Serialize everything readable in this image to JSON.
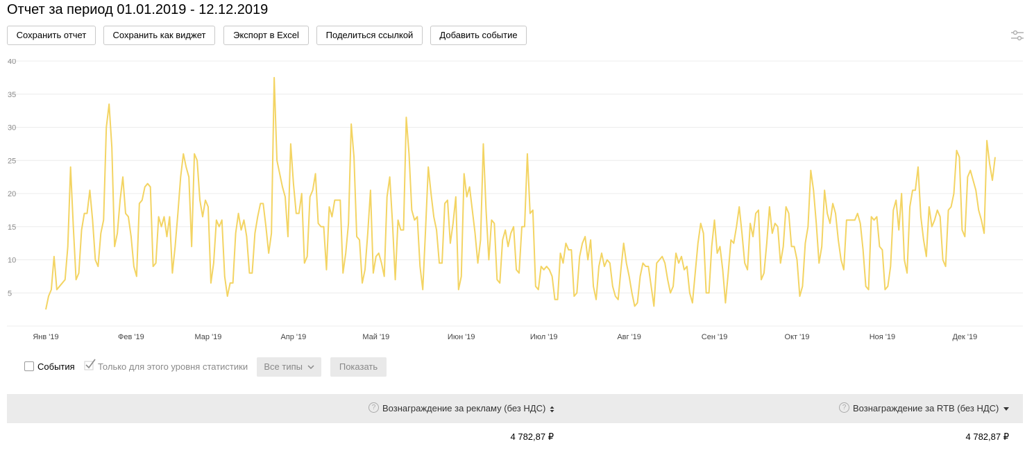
{
  "report": {
    "title": "Отчет за период 01.01.2019 - 12.12.2019"
  },
  "toolbar": {
    "buttons": [
      {
        "label": "Сохранить отчет"
      },
      {
        "label": "Сохранить как виджет"
      },
      {
        "label": "Экспорт в Excel"
      },
      {
        "label": "Поделиться ссылкой"
      },
      {
        "label": "Добавить событие"
      }
    ],
    "settings_icon": "sliders-icon"
  },
  "chart_data": {
    "type": "line",
    "title": "",
    "xlabel": "",
    "ylabel": "",
    "ylim": [
      0,
      40
    ],
    "yticks": [
      5,
      10,
      15,
      20,
      25,
      30,
      35,
      40
    ],
    "grid": true,
    "line_color": "#f3d463",
    "x_range": [
      "2019-01-01",
      "2019-12-12"
    ],
    "x_tick_labels": [
      {
        "label": "Янв '19",
        "date": "2019-01-01"
      },
      {
        "label": "Фев '19",
        "date": "2019-02-01"
      },
      {
        "label": "Мар '19",
        "date": "2019-03-01"
      },
      {
        "label": "Апр '19",
        "date": "2019-04-01"
      },
      {
        "label": "Май '19",
        "date": "2019-05-01"
      },
      {
        "label": "Июн '19",
        "date": "2019-06-01"
      },
      {
        "label": "Июл '19",
        "date": "2019-07-01"
      },
      {
        "label": "Авг '19",
        "date": "2019-08-01"
      },
      {
        "label": "Сен '19",
        "date": "2019-09-01"
      },
      {
        "label": "Окт '19",
        "date": "2019-10-01"
      },
      {
        "label": "Ноя '19",
        "date": "2019-11-01"
      },
      {
        "label": "Дек '19",
        "date": "2019-12-01"
      }
    ],
    "series": [
      {
        "values": [
          2.5,
          4.5,
          5.5,
          10.5,
          5.5,
          6,
          6.5,
          7,
          12,
          24,
          15,
          7,
          8,
          14.5,
          17,
          17,
          20.5,
          16,
          10,
          9,
          14,
          16,
          30,
          33.5,
          27,
          12,
          14,
          19,
          22.5,
          17,
          16.5,
          13.5,
          9,
          7.5,
          18.5,
          19,
          21,
          21.5,
          21,
          9,
          9.5,
          16.5,
          15,
          16.5,
          13.5,
          16.5,
          8,
          12,
          17,
          22.5,
          26,
          24,
          22.5,
          12,
          26,
          25,
          19,
          16.5,
          19,
          18,
          6.5,
          9.5,
          16,
          15,
          16,
          7.5,
          4.5,
          6.5,
          6.5,
          14,
          17,
          14.5,
          16,
          13.5,
          8,
          8,
          14,
          16.5,
          18.5,
          18.5,
          15,
          11,
          14,
          37.5,
          25,
          23,
          21,
          19.5,
          13.5,
          27.5,
          21.5,
          17,
          17,
          20,
          9.5,
          10.5,
          19.5,
          20.5,
          23,
          15.5,
          15,
          15,
          8.5,
          18,
          16.5,
          19,
          19,
          19,
          8,
          11,
          15.5,
          30.5,
          25.5,
          13.5,
          13,
          6.5,
          8.5,
          14,
          20.5,
          8,
          10.5,
          11,
          9.5,
          7.5,
          19.5,
          22.5,
          15.5,
          7,
          16,
          14.5,
          14.5,
          31.5,
          26,
          17.5,
          16,
          16.5,
          9,
          5.5,
          14.5,
          24,
          20,
          16.5,
          14.5,
          9.5,
          9.5,
          18.5,
          19,
          12.5,
          15.5,
          19.5,
          5.5,
          7.5,
          23,
          19.5,
          21,
          17.5,
          14,
          9.5,
          13,
          27.5,
          17.5,
          10,
          16,
          15.5,
          7,
          6.5,
          13,
          14.5,
          12,
          14,
          15,
          8.5,
          8,
          15,
          15,
          26,
          17,
          17.5,
          6,
          5.5,
          9,
          8.5,
          9,
          8.5,
          7.5,
          4,
          4,
          11,
          9.5,
          12.5,
          11.5,
          11.5,
          4.5,
          5,
          10.5,
          12.5,
          13.5,
          10,
          13,
          6,
          4,
          9,
          11,
          9,
          10,
          9.5,
          6,
          4.5,
          4,
          8.5,
          12.5,
          9.5,
          7.5,
          5,
          3,
          3.5,
          7.5,
          9.5,
          9,
          9,
          6,
          3,
          9.5,
          10,
          10.5,
          9.5,
          7,
          5,
          6,
          11,
          9.5,
          10.5,
          8.5,
          9,
          5,
          3.5,
          8,
          12.5,
          15.5,
          14,
          5,
          5,
          12,
          16,
          11,
          12,
          8.5,
          3.5,
          8,
          13,
          12.5,
          15,
          18,
          14,
          9.5,
          8.5,
          15.5,
          13.5,
          17,
          17.5,
          7,
          8,
          12.5,
          18,
          14,
          15.5,
          15,
          9.5,
          12,
          18,
          17,
          12,
          12,
          10,
          4.5,
          6,
          12.5,
          15,
          23.5,
          20.5,
          15.5,
          9.5,
          12,
          20.5,
          17,
          15.5,
          18.5,
          17,
          13,
          10,
          8.5,
          16,
          16,
          16,
          16,
          17,
          15.5,
          11.5,
          6,
          5.5,
          16.5,
          16,
          16.5,
          12,
          11.5,
          5.5,
          6,
          9,
          17.5,
          19,
          14.5,
          20,
          10,
          8,
          18,
          20.5,
          20.5,
          24,
          16.5,
          13,
          10.5,
          18,
          15,
          16,
          17.5,
          16.5,
          10,
          9,
          17.5,
          18,
          20,
          26.5,
          25.5,
          14.5,
          13.5,
          22.5,
          23.5,
          22,
          20.5,
          17.5,
          16,
          14,
          28,
          24.5,
          22,
          25.5
        ]
      }
    ]
  },
  "controls": {
    "events_label": "События",
    "events_checked": false,
    "level_only_label": "Только для этого уровня статистики",
    "level_only_checked": true,
    "types_dropdown": "Все типы",
    "show_button": "Показать"
  },
  "table": {
    "columns": [
      {
        "label": "Вознаграждение за рекламу (без НДС)",
        "sort_icon": "sort-both-icon"
      },
      {
        "label": "Вознаграждение за RTB (без НДС)",
        "sort_icon": "sort-desc-icon"
      }
    ],
    "rows": [
      [
        "4 782,87 ₽",
        "4 782,87 ₽"
      ]
    ]
  }
}
